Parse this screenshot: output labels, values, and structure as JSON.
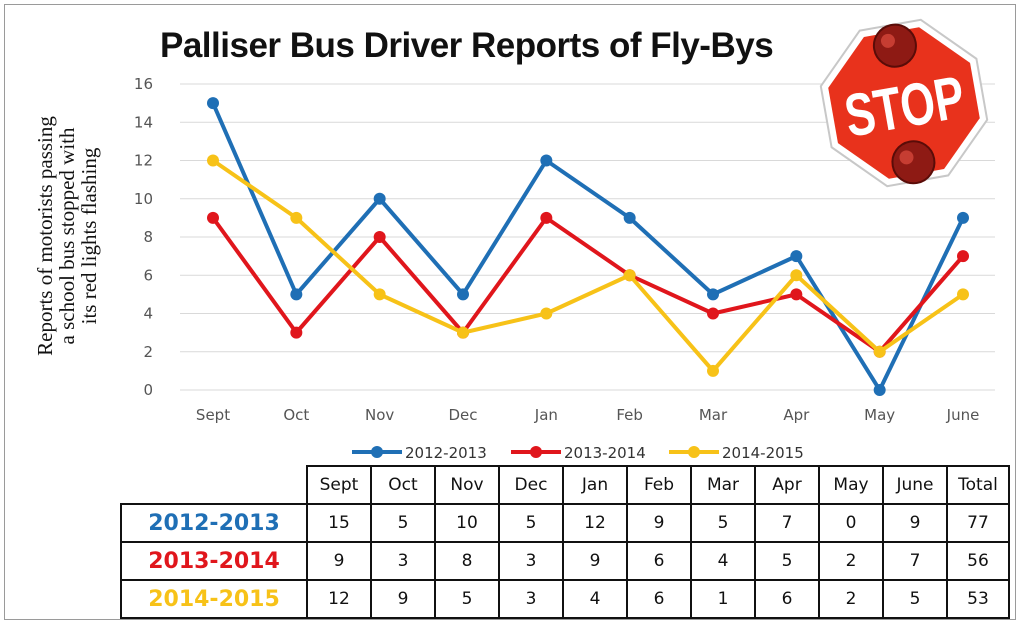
{
  "chart_data": {
    "type": "line",
    "title": "Palliser Bus Driver Reports of Fly-Bys",
    "ylabel_lines": [
      "Reports of motorists  passing",
      "a school bus stopped with",
      "its red lights flashing"
    ],
    "categories": [
      "Sept",
      "Oct",
      "Nov",
      "Dec",
      "Jan",
      "Feb",
      "Mar",
      "Apr",
      "May",
      "June"
    ],
    "ylim": [
      0,
      16
    ],
    "yticks": [
      "0",
      "2",
      "4",
      "6",
      "8",
      "10",
      "12",
      "14",
      "16"
    ],
    "grid": true,
    "legend_position": "bottom",
    "series": [
      {
        "name": "2012-2013",
        "color": "#1f6fb5",
        "values": [
          15,
          5,
          10,
          5,
          12,
          9,
          5,
          7,
          0,
          9
        ]
      },
      {
        "name": "2013-2014",
        "color": "#e0161c",
        "values": [
          9,
          3,
          8,
          3,
          9,
          6,
          4,
          5,
          2,
          7
        ]
      },
      {
        "name": "2014-2015",
        "color": "#f7c218",
        "values": [
          12,
          9,
          5,
          3,
          4,
          6,
          1,
          6,
          2,
          5
        ]
      }
    ]
  },
  "table": {
    "columns": [
      "Sept",
      "Oct",
      "Nov",
      "Dec",
      "Jan",
      "Feb",
      "Mar",
      "Apr",
      "May",
      "June",
      "Total"
    ],
    "rows": [
      {
        "label": "2012-2013",
        "color": "#1f6fb5",
        "cells": [
          "15",
          "5",
          "10",
          "5",
          "12",
          "9",
          "5",
          "7",
          "0",
          "9",
          "77"
        ]
      },
      {
        "label": "2013-2014",
        "color": "#e0161c",
        "cells": [
          "9",
          "3",
          "8",
          "3",
          "9",
          "6",
          "4",
          "5",
          "2",
          "7",
          "56"
        ]
      },
      {
        "label": "2014-2015",
        "color": "#f7c218",
        "cells": [
          "12",
          "9",
          "5",
          "3",
          "4",
          "6",
          "1",
          "6",
          "2",
          "5",
          "53"
        ]
      }
    ]
  },
  "stop_sign": {
    "text": "STOP",
    "color": "#e8321c"
  }
}
